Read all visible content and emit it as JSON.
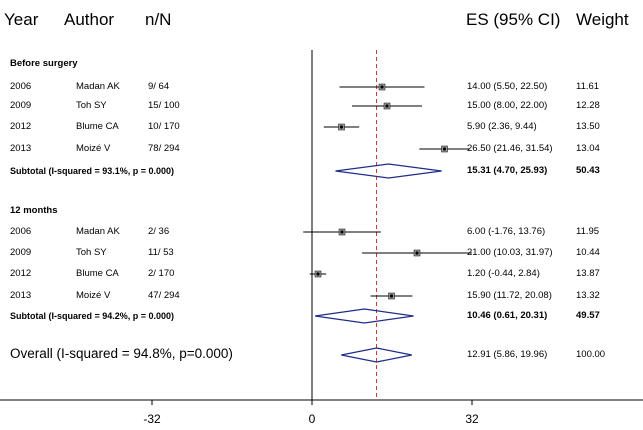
{
  "header": {
    "year": "Year",
    "author": "Author",
    "nN": "n/N",
    "es": "ES (95% CI)",
    "weight": "Weight"
  },
  "colors": {
    "diamond": "#1f2d8a",
    "null_line": "#000000",
    "overall_line": "#c0392b",
    "ci_line": "#000000"
  },
  "chart_data": {
    "type": "forest",
    "x_ticks": [
      -32,
      0,
      32
    ],
    "xlim": [
      -70,
      70
    ],
    "overall_line_at": 12.91,
    "groups": [
      {
        "label": "Before surgery",
        "studies": [
          {
            "year": "2006",
            "author": "Madan AK",
            "nN": "9/ 64",
            "es": 14.0,
            "lo": 5.5,
            "hi": 22.5,
            "es_text": "14.00 (5.50, 22.50)",
            "weight": "11.61"
          },
          {
            "year": "2009",
            "author": "Toh SY",
            "nN": "15/ 100",
            "es": 15.0,
            "lo": 8.0,
            "hi": 22.0,
            "es_text": "15.00 (8.00, 22.00)",
            "weight": "12.28"
          },
          {
            "year": "2012",
            "author": "Blume CA",
            "nN": "10/ 170",
            "es": 5.9,
            "lo": 2.36,
            "hi": 9.44,
            "es_text": "5.90 (2.36, 9.44)",
            "weight": "13.50"
          },
          {
            "year": "2013",
            "author": "Moizé V",
            "nN": "78/ 294",
            "es": 26.5,
            "lo": 21.46,
            "hi": 31.54,
            "es_text": "26.50 (21.46, 31.54)",
            "weight": "13.04"
          }
        ],
        "subtotal": {
          "label": "Subtotal (I-squared = 93.1%, p = 0.000)",
          "es": 15.31,
          "lo": 4.7,
          "hi": 25.93,
          "es_text": "15.31 (4.70, 25.93)",
          "weight": "50.43"
        }
      },
      {
        "label": "12 months",
        "studies": [
          {
            "year": "2006",
            "author": "Madan AK",
            "nN": "2/ 36",
            "es": 6.0,
            "lo": -1.76,
            "hi": 13.76,
            "es_text": "6.00 (-1.76, 13.76)",
            "weight": "11.95"
          },
          {
            "year": "2009",
            "author": "Toh SY",
            "nN": "11/ 53",
            "es": 21.0,
            "lo": 10.03,
            "hi": 31.97,
            "es_text": "21.00 (10.03, 31.97)",
            "weight": "10.44"
          },
          {
            "year": "2012",
            "author": "Blume CA",
            "nN": "2/ 170",
            "es": 1.2,
            "lo": -0.44,
            "hi": 2.84,
            "es_text": "1.20 (-0.44, 2.84)",
            "weight": "13.87"
          },
          {
            "year": "2013",
            "author": "Moizé V",
            "nN": "47/ 294",
            "es": 15.9,
            "lo": 11.72,
            "hi": 20.08,
            "es_text": "15.90 (11.72, 20.08)",
            "weight": "13.32"
          }
        ],
        "subtotal": {
          "label": "Subtotal (I-squared = 94.2%, p = 0.000)",
          "es": 10.46,
          "lo": 0.61,
          "hi": 20.31,
          "es_text": "10.46 (0.61, 20.31)",
          "weight": "49.57"
        }
      }
    ],
    "overall": {
      "label": "Overall (I-squared = 94.8%, p=0.000)",
      "es": 12.91,
      "lo": 5.86,
      "hi": 19.96,
      "es_text": "12.91 (5.86, 19.96)",
      "weight": "100.00"
    }
  }
}
